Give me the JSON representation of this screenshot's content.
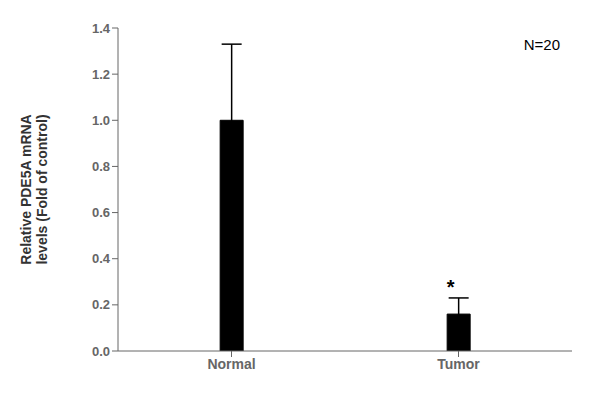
{
  "chart_data": {
    "type": "bar",
    "categories": [
      "Normal",
      "Tumor"
    ],
    "values": [
      1.0,
      0.16
    ],
    "errors": [
      0.33,
      0.07
    ],
    "color": "#000000",
    "ylabel": "Relative PDE5A mRNA\nlevels (Fold of control)",
    "ylim": [
      0,
      1.4
    ],
    "yticks": [
      {
        "value": 0,
        "label": "0.0"
      },
      0.2,
      0.4,
      0.6,
      0.8,
      {
        "value": 1,
        "label": "1.0"
      },
      1.2,
      1.4
    ],
    "annotations": [
      "*",
      "N=20"
    ],
    "grid": false
  }
}
